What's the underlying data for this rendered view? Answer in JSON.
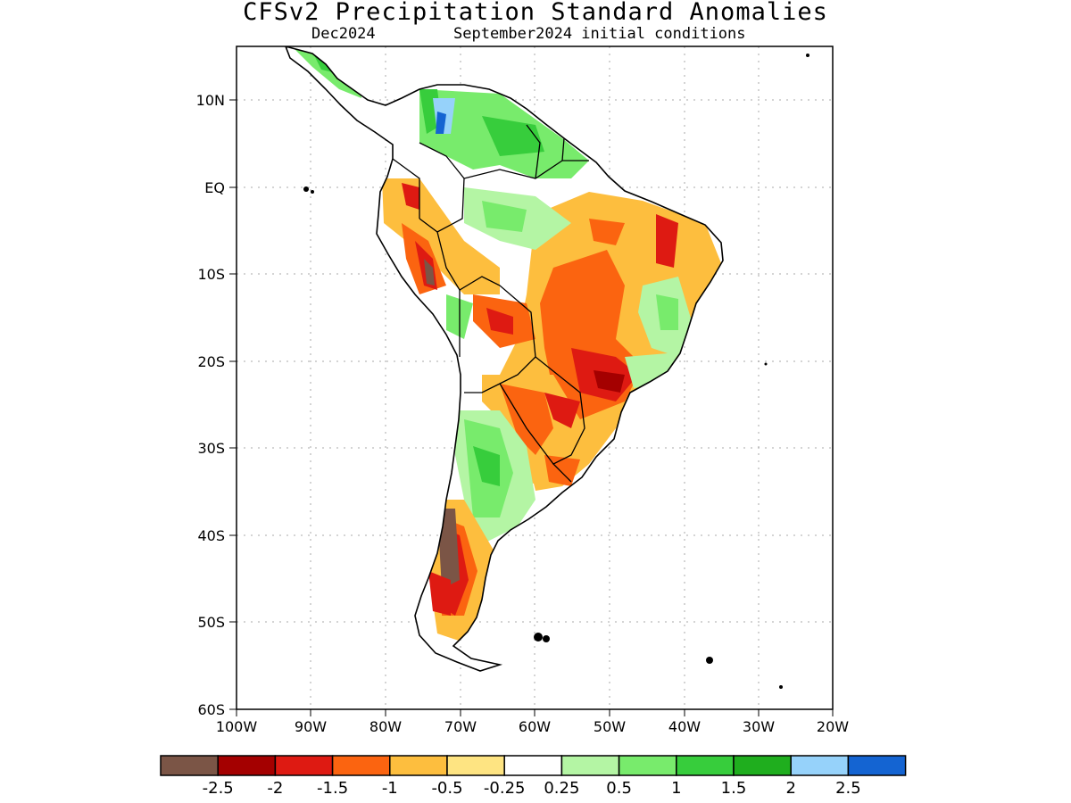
{
  "title": "CFSv2 Precipitation Standard Anomalies",
  "subtitle_left": "Dec2024",
  "subtitle_right": "September2024 initial conditions",
  "map": {
    "region": "South America",
    "lon_range": [
      -100,
      -20
    ],
    "lat_range": [
      -60,
      15
    ],
    "lat_ticks": [
      "10N",
      "EQ",
      "10S",
      "20S",
      "30S",
      "40S",
      "50S",
      "60S"
    ],
    "lon_ticks": [
      "100W",
      "90W",
      "80W",
      "70W",
      "60W",
      "50W",
      "40W",
      "30W",
      "20W"
    ],
    "grid": "dotted"
  },
  "colorbar": {
    "colors": [
      "#7b5546",
      "#a40000",
      "#de1a12",
      "#fb6410",
      "#fdbe3e",
      "#fee482",
      "#ffffff",
      "#b4f5a4",
      "#78eb6c",
      "#37cd3c",
      "#1fae1e",
      "#96d2fa",
      "#1464d2"
    ],
    "labels": [
      "-2.5",
      "-2",
      "-1.5",
      "-1",
      "-0.5",
      "-0.25",
      "0.25",
      "0.5",
      "1",
      "1.5",
      "2",
      "2.5"
    ]
  }
}
